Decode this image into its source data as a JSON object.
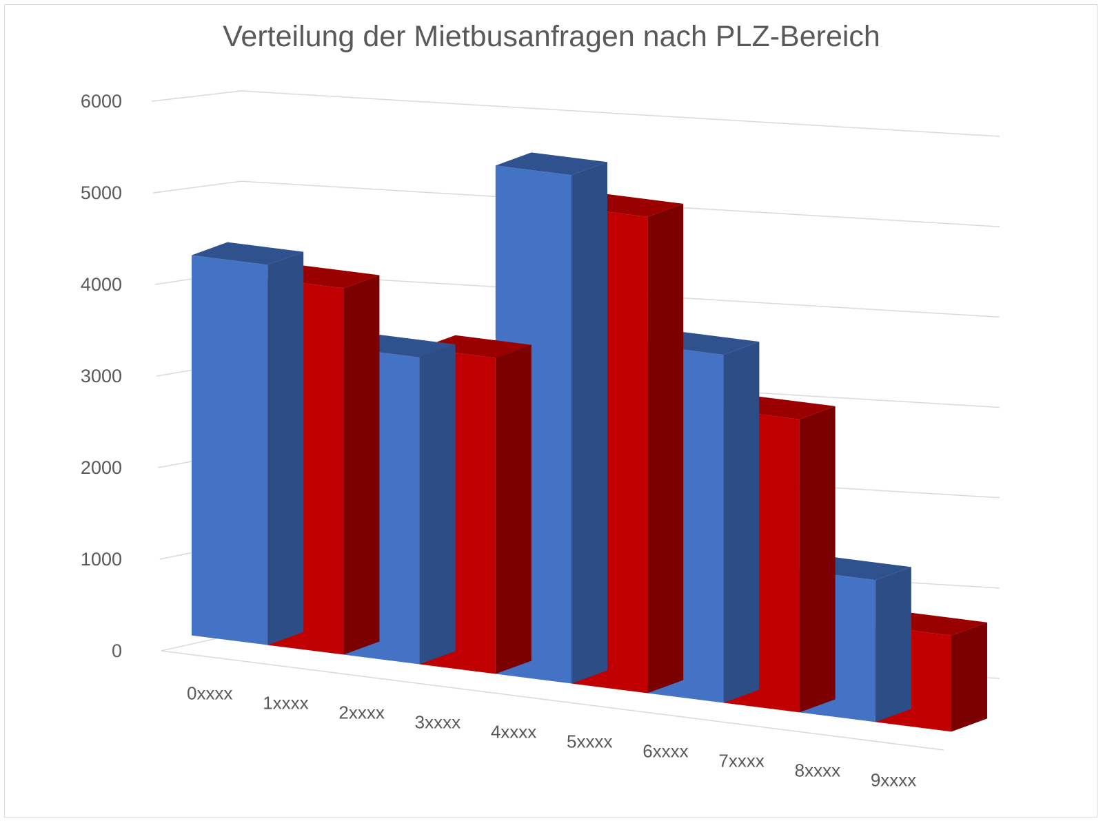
{
  "chart_data": {
    "type": "bar",
    "title": "Verteilung der Mietbusanfragen nach PLZ-Bereich",
    "categories": [
      "0xxxx",
      "1xxxx",
      "2xxxx",
      "3xxxx",
      "4xxxx",
      "5xxxx",
      "6xxxx",
      "7xxxx",
      "8xxxx",
      "9xxxx"
    ],
    "values": [
      4150,
      4000,
      3350,
      3450,
      5550,
      5200,
      3800,
      3200,
      1550,
      1050
    ],
    "ylim": [
      0,
      6000
    ],
    "yticks": [
      "0",
      "1000",
      "2000",
      "3000",
      "4000",
      "5000",
      "6000"
    ],
    "style": "3d-column",
    "grid": true,
    "colors": {
      "blue_front": "#4472c4",
      "blue_top": "#2f528f",
      "blue_side": "#2c4d86",
      "red_front": "#c00000",
      "red_top": "#9b0000",
      "red_side": "#7b0000",
      "grid": "#d9d9d9",
      "text": "#595959"
    }
  }
}
